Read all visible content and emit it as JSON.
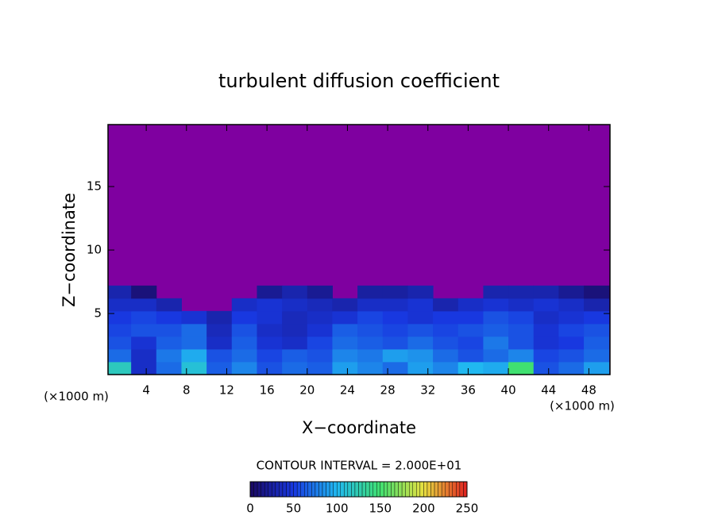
{
  "chart_data": {
    "type": "heatmap",
    "title": "turbulent diffusion coefficient",
    "xlabel": "X−coordinate",
    "ylabel": "Z−coordinate",
    "x_unit_left": "(×1000 m)",
    "x_unit_right": "(×1000 m)",
    "contour_interval": "CONTOUR INTERVAL = 2.000E+01",
    "xlim": [
      0.2,
      50.1
    ],
    "ylim": [
      0.19,
      19.88
    ],
    "xticks": [
      4,
      8,
      12,
      16,
      20,
      24,
      28,
      32,
      36,
      40,
      44,
      48
    ],
    "yticks": [
      5,
      10,
      15
    ],
    "background": "#7f00a0",
    "x": [
      1.25,
      3.75,
      6.25,
      8.75,
      11.25,
      13.75,
      16.25,
      18.75,
      21.25,
      23.75,
      26.25,
      28.75,
      31.25,
      33.75,
      36.25,
      38.75,
      41.25,
      43.75,
      46.25,
      48.75
    ],
    "z": [
      0.7,
      1.7,
      2.7,
      3.7,
      4.7,
      5.7,
      6.7
    ],
    "values": [
      [
        120,
        40,
        70,
        110,
        65,
        80,
        60,
        70,
        65,
        90,
        80,
        70,
        90,
        80,
        100,
        95,
        150,
        60,
        70,
        90
      ],
      [
        70,
        40,
        75,
        95,
        60,
        70,
        55,
        65,
        60,
        80,
        75,
        90,
        85,
        70,
        60,
        70,
        80,
        55,
        60,
        70
      ],
      [
        60,
        45,
        65,
        70,
        40,
        65,
        45,
        40,
        55,
        70,
        65,
        60,
        70,
        60,
        55,
        75,
        60,
        45,
        50,
        65
      ],
      [
        55,
        60,
        60,
        70,
        35,
        60,
        40,
        35,
        45,
        65,
        60,
        55,
        60,
        55,
        60,
        65,
        60,
        45,
        55,
        60
      ],
      [
        50,
        55,
        50,
        45,
        30,
        50,
        45,
        35,
        40,
        45,
        55,
        50,
        45,
        50,
        50,
        60,
        55,
        40,
        45,
        50
      ],
      [
        40,
        40,
        30,
        null,
        null,
        40,
        45,
        40,
        35,
        30,
        40,
        40,
        45,
        30,
        40,
        45,
        40,
        45,
        40,
        30
      ],
      [
        30,
        10,
        null,
        null,
        null,
        null,
        20,
        30,
        20,
        null,
        25,
        25,
        30,
        null,
        null,
        30,
        30,
        30,
        20,
        10
      ]
    ],
    "clim": [
      0,
      250
    ],
    "cticks": [
      0,
      50,
      100,
      150,
      200,
      250
    ],
    "colormap": [
      "#1a0860",
      "#1838e0",
      "#20b8f0",
      "#40e070",
      "#e8e040",
      "#e02020"
    ]
  }
}
